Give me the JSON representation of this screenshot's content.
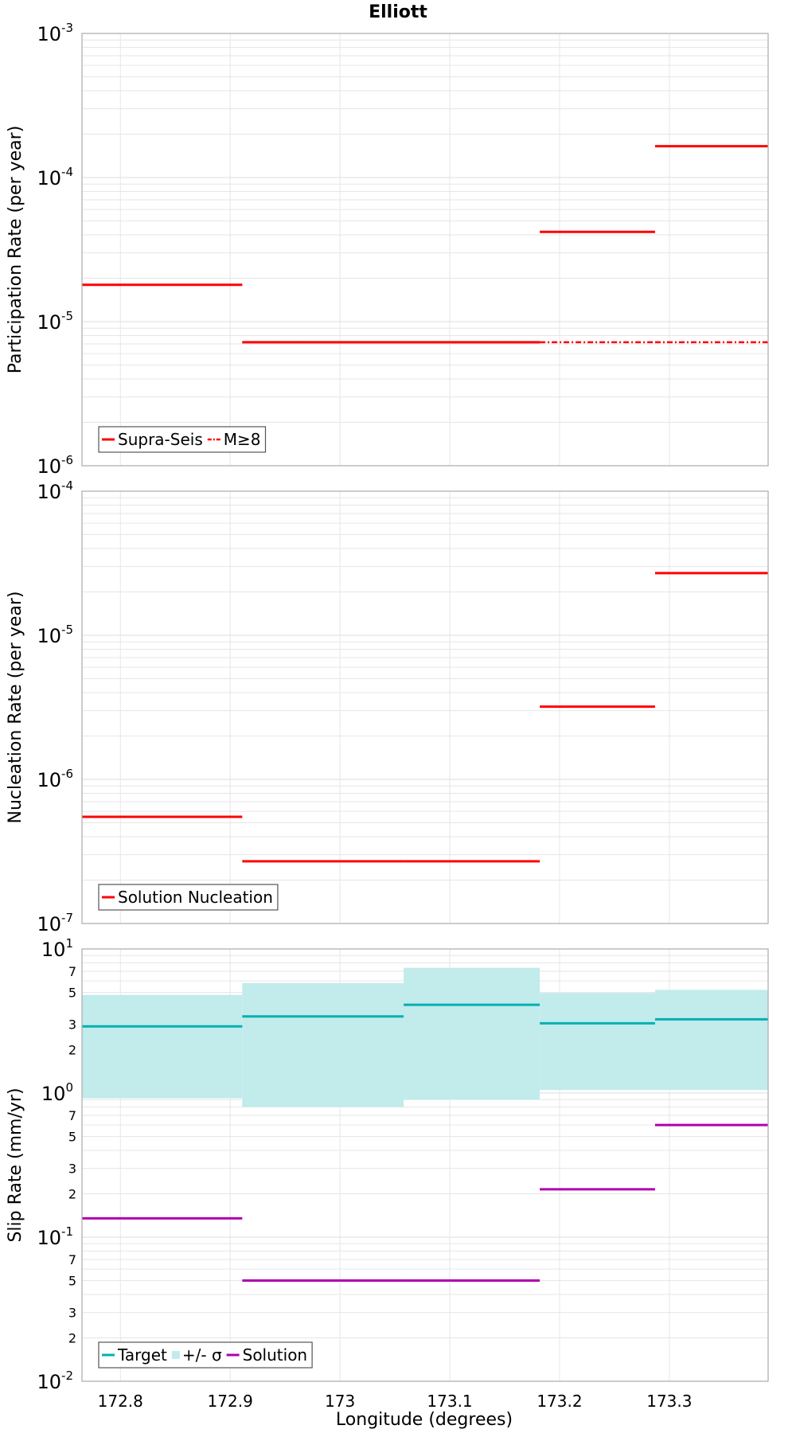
{
  "title": "Elliott",
  "xlabel": "Longitude (degrees)",
  "colors": {
    "red": "#ff0000",
    "teal": "#00b0b0",
    "band": "#c2ebeb",
    "purple": "#b000b0",
    "grid": "#e6e6e6",
    "frame": "#aaaaaa"
  },
  "chart_data": [
    {
      "type": "line",
      "panel": "participation",
      "ylabel": "Participation Rate (per year)",
      "yscale": "log",
      "xlim": [
        172.765,
        173.39
      ],
      "ylim": [
        1e-06,
        0.001
      ],
      "x_ticks": [
        "172.8",
        "172.9",
        "173",
        "173.1",
        "173.2",
        "173.3"
      ],
      "y_ticks": [
        {
          "base": "10",
          "exp": "-6"
        },
        {
          "base": "10",
          "exp": "-5"
        },
        {
          "base": "10",
          "exp": "-4"
        },
        {
          "base": "10",
          "exp": "-3"
        }
      ],
      "grid": true,
      "legend_position": "bottom-left",
      "series": [
        {
          "name": "Supra-Seis",
          "style": "solid",
          "color": "#ff0000",
          "segments": [
            {
              "x": [
                172.765,
                172.911
              ],
              "y": 1.8e-05
            },
            {
              "x": [
                172.911,
                173.058
              ],
              "y": 7.2e-06
            },
            {
              "x": [
                173.058,
                173.182
              ],
              "y": 7.2e-06
            },
            {
              "x": [
                173.182,
                173.287
              ],
              "y": 4.2e-05
            },
            {
              "x": [
                173.287,
                173.39
              ],
              "y": 0.000165
            }
          ]
        },
        {
          "name": "M≥8",
          "style": "dashdot",
          "color": "#ff0000",
          "segments": [
            {
              "x": [
                172.911,
                173.058
              ],
              "y": 7.2e-06
            },
            {
              "x": [
                173.058,
                173.182
              ],
              "y": 7.2e-06
            },
            {
              "x": [
                173.182,
                173.287
              ],
              "y": 7.2e-06
            },
            {
              "x": [
                173.287,
                173.39
              ],
              "y": 7.2e-06
            }
          ]
        }
      ]
    },
    {
      "type": "line",
      "panel": "nucleation",
      "ylabel": "Nucleation Rate (per year)",
      "yscale": "log",
      "xlim": [
        172.765,
        173.39
      ],
      "ylim": [
        1e-07,
        0.0001
      ],
      "y_ticks": [
        {
          "base": "10",
          "exp": "-7"
        },
        {
          "base": "10",
          "exp": "-6"
        },
        {
          "base": "10",
          "exp": "-5"
        },
        {
          "base": "10",
          "exp": "-4"
        }
      ],
      "grid": true,
      "legend_position": "bottom-left",
      "series": [
        {
          "name": "Solution Nucleation",
          "style": "solid",
          "color": "#ff0000",
          "segments": [
            {
              "x": [
                172.765,
                172.911
              ],
              "y": 5.5e-07
            },
            {
              "x": [
                172.911,
                173.058
              ],
              "y": 2.7e-07
            },
            {
              "x": [
                173.058,
                173.182
              ],
              "y": 2.7e-07
            },
            {
              "x": [
                173.182,
                173.287
              ],
              "y": 3.2e-06
            },
            {
              "x": [
                173.287,
                173.39
              ],
              "y": 2.7e-05
            }
          ]
        }
      ]
    },
    {
      "type": "line",
      "panel": "slip",
      "ylabel": "Slip Rate (mm/yr)",
      "yscale": "log",
      "xlim": [
        172.765,
        173.39
      ],
      "ylim": [
        0.01,
        10
      ],
      "y_ticks": [
        {
          "base": "10",
          "exp": "-2"
        },
        {
          "base": "10",
          "exp": "-1"
        },
        {
          "base": "10",
          "exp": "0"
        },
        {
          "base": "10",
          "exp": "1"
        }
      ],
      "y_minor_labels": [
        "2",
        "3",
        "5",
        "7"
      ],
      "grid": true,
      "legend_position": "bottom-left",
      "series": [
        {
          "name": "Target",
          "style": "solid",
          "color": "#00b0b0",
          "segments": [
            {
              "x": [
                172.765,
                172.911
              ],
              "y": 2.9
            },
            {
              "x": [
                172.911,
                173.058
              ],
              "y": 3.4
            },
            {
              "x": [
                173.058,
                173.182
              ],
              "y": 4.1
            },
            {
              "x": [
                173.182,
                173.287
              ],
              "y": 3.05
            },
            {
              "x": [
                173.287,
                173.39
              ],
              "y": 3.25
            }
          ]
        },
        {
          "name": "+/- σ",
          "style": "band",
          "color": "#c2ebeb",
          "segments": [
            {
              "x": [
                172.765,
                172.911
              ],
              "low": 0.92,
              "high": 4.8
            },
            {
              "x": [
                172.911,
                173.058
              ],
              "low": 0.8,
              "high": 5.8
            },
            {
              "x": [
                173.058,
                173.182
              ],
              "low": 0.9,
              "high": 7.4
            },
            {
              "x": [
                173.182,
                173.287
              ],
              "low": 1.05,
              "high": 4.95
            },
            {
              "x": [
                173.287,
                173.39
              ],
              "low": 1.05,
              "high": 5.2
            }
          ]
        },
        {
          "name": "Solution",
          "style": "solid",
          "color": "#b000b0",
          "segments": [
            {
              "x": [
                172.765,
                172.911
              ],
              "y": 0.135
            },
            {
              "x": [
                172.911,
                173.058
              ],
              "y": 0.05
            },
            {
              "x": [
                173.058,
                173.182
              ],
              "y": 0.05
            },
            {
              "x": [
                173.182,
                173.287
              ],
              "y": 0.215
            },
            {
              "x": [
                173.287,
                173.39
              ],
              "y": 0.6
            }
          ]
        }
      ]
    }
  ]
}
